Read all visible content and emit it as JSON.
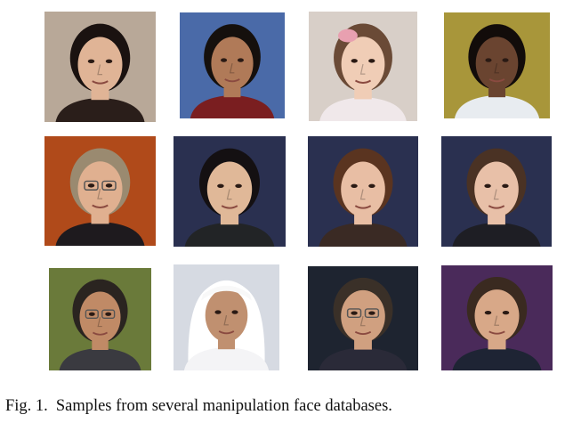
{
  "figure": {
    "caption_label": "Fig. 1.",
    "caption_text": "Samples from several manipulation face databases.",
    "rows": [
      {
        "row": 1,
        "faces": [
          {
            "bg": "#b8a898",
            "skin": "#e0b496",
            "hair": "#1a1210",
            "shirt": "#2a1e1a"
          },
          {
            "bg": "#4a6aa8",
            "skin": "#b07a58",
            "hair": "#15100d",
            "shirt": "#7a1e20"
          },
          {
            "bg": "#d8cfc8",
            "skin": "#f0cdb6",
            "hair": "#6a4a36",
            "shirt": "#f0e8ea",
            "accessory": "#e8a0b0"
          },
          {
            "bg": "#a8963a",
            "skin": "#6a4430",
            "hair": "#120c0a",
            "shirt": "#e8ecf0"
          }
        ]
      },
      {
        "row": 2,
        "faces": [
          {
            "bg": "#b04a1a",
            "skin": "#e0b090",
            "hair": "#9a8a70",
            "shirt": "#1e1a1e",
            "glasses": true
          },
          {
            "bg": "#2a3050",
            "skin": "#e0b898",
            "hair": "#141012",
            "shirt": "#222426"
          },
          {
            "bg": "#2a3050",
            "skin": "#e8bea4",
            "hair": "#5a3420",
            "shirt": "#3a2a24"
          },
          {
            "bg": "#2a3050",
            "skin": "#e8c0a8",
            "hair": "#4a3224",
            "shirt": "#1e1e24"
          }
        ]
      },
      {
        "row": 3,
        "faces": [
          {
            "bg": "#6a7a3a",
            "skin": "#c08a66",
            "hair": "#2a2420",
            "shirt": "#3a3a40",
            "glasses": true
          },
          {
            "bg": "#d6dae2",
            "skin": "#c09070",
            "hair": "#ffffff",
            "shirt": "#f4f4f6",
            "headdress": true
          },
          {
            "bg": "#1e2430",
            "skin": "#d0a080",
            "hair": "#3a3028",
            "shirt": "#2a2a38",
            "glasses": true
          },
          {
            "bg": "#4a2a5a",
            "skin": "#d8a888",
            "hair": "#3a2a20",
            "shirt": "#1e2434"
          }
        ]
      }
    ]
  }
}
